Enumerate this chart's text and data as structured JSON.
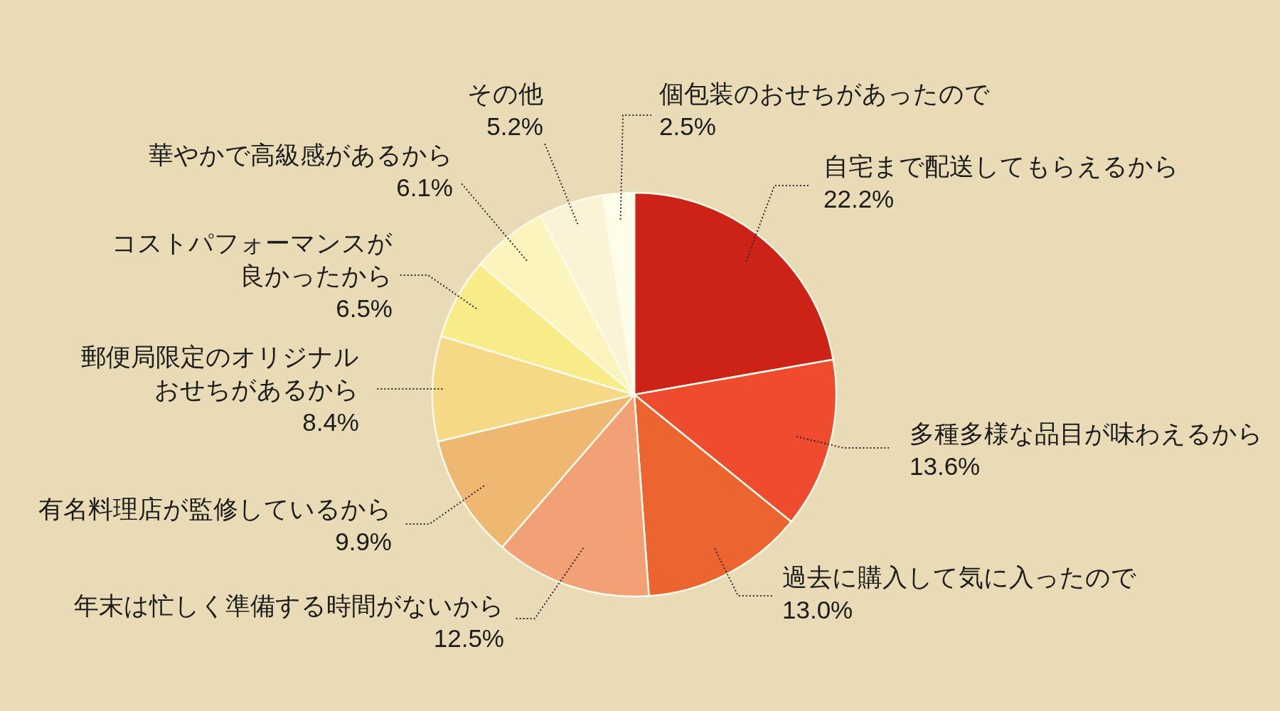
{
  "chart_data": {
    "type": "pie",
    "categories": [
      "自宅まで配送してもらえるから",
      "多種多様な品目が味わえるから",
      "過去に購入して気に入ったので",
      "年末は忙しく準備する時間がないから",
      "有名料理店が監修しているから",
      "郵便局限定のオリジナルおせちがあるから",
      "コストパフォーマンスが良かったから",
      "華やかで高級感があるから",
      "その他",
      "個包装のおせちがあったので"
    ],
    "values": [
      22.2,
      13.6,
      13.0,
      12.5,
      9.9,
      8.4,
      6.5,
      6.1,
      5.2,
      2.5
    ],
    "value_labels": [
      "22.2%",
      "13.6%",
      "13.0%",
      "12.5%",
      "9.9%",
      "8.4%",
      "6.5%",
      "6.1%",
      "5.2%",
      "2.5%"
    ],
    "colors": [
      "#cc2217",
      "#ef4b2e",
      "#ec6430",
      "#f2a075",
      "#efb872",
      "#f5d987",
      "#f8ec8a",
      "#fbf4bd",
      "#fbf3d5",
      "#fdfde9"
    ]
  }
}
